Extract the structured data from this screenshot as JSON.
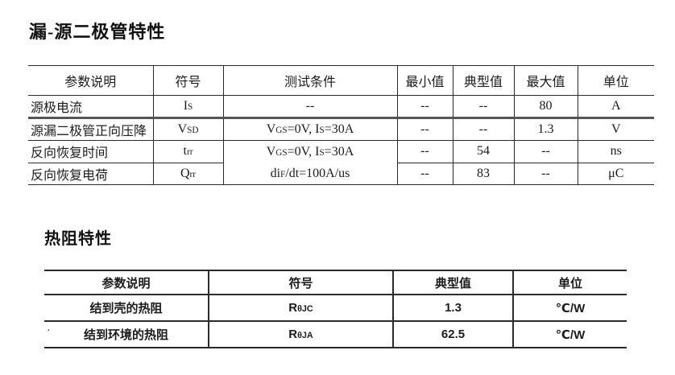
{
  "colors": {
    "background": "#ffffff",
    "text": "#1c1c1c",
    "line": "#2b2b2b",
    "thick_divider": "#555555"
  },
  "section1": {
    "title": "漏-源二极管特性",
    "headers": [
      "参数说明",
      "符号",
      "测试条件",
      "最小值",
      "典型值",
      "最大值",
      "单位"
    ],
    "rows": [
      {
        "param": "源极电流",
        "symbol": [
          {
            "t": "I"
          },
          {
            "t": "S",
            "sub": true
          }
        ],
        "condition": "--",
        "min": "--",
        "typ": "--",
        "max": "80",
        "unit": "A"
      },
      {
        "param": "源漏二极管正向压降",
        "symbol": [
          {
            "t": "V"
          },
          {
            "t": "SD",
            "sub": true
          }
        ],
        "condition": [
          {
            "t": "V"
          },
          {
            "t": "GS",
            "sub": true
          },
          {
            "t": "=0V, I"
          },
          {
            "t": "S",
            "sub": true
          },
          {
            "t": "=30A"
          }
        ],
        "min": "--",
        "typ": "--",
        "max": "1.3",
        "unit": "V"
      },
      {
        "param": "反向恢复时间",
        "symbol": [
          {
            "t": "t"
          },
          {
            "t": "rr",
            "sub": true
          }
        ],
        "min": "--",
        "typ": "54",
        "max": "--",
        "unit": "ns"
      },
      {
        "param": "反向恢复电荷",
        "symbol": [
          {
            "t": "Q"
          },
          {
            "t": "rr",
            "sub": true
          }
        ],
        "min": "--",
        "typ": "83",
        "max": "--",
        "unit": "μC"
      }
    ],
    "merged_condition": {
      "line1": [
        {
          "t": "V"
        },
        {
          "t": "GS",
          "sub": true
        },
        {
          "t": "=0V, I"
        },
        {
          "t": "S",
          "sub": true
        },
        {
          "t": "=30A"
        }
      ],
      "line2": [
        {
          "t": "di"
        },
        {
          "t": "F",
          "sub": true
        },
        {
          "t": "/dt=100A/us"
        }
      ]
    }
  },
  "section2": {
    "title": "热阻特性",
    "headers": [
      "参数说明",
      "符号",
      "典型值",
      "单位"
    ],
    "rows": [
      {
        "param": "结到壳的热阻",
        "symbol": [
          {
            "t": "R"
          },
          {
            "t": "θJC",
            "sub": true
          }
        ],
        "typ": "1.3",
        "unit": "℃/W"
      },
      {
        "param": "结到环境的热阻",
        "symbol": [
          {
            "t": "R"
          },
          {
            "t": "θJA",
            "sub": true
          }
        ],
        "typ": "62.5",
        "unit": "℃/W"
      }
    ]
  },
  "stray_mark": "·"
}
